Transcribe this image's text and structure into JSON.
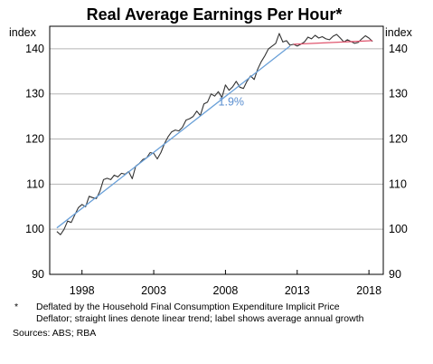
{
  "chart_data": {
    "type": "line",
    "title": "Real Average Earnings Per Hour*",
    "ylabel_left": "index",
    "ylabel_right": "index",
    "ylim": [
      90,
      145
    ],
    "yticks": [
      90,
      100,
      110,
      120,
      130,
      140
    ],
    "xlim": [
      1995.75,
      2019.0
    ],
    "xticks": [
      1998,
      2003,
      2008,
      2013,
      2018
    ],
    "grid": true,
    "series": [
      {
        "name": "",
        "style": "dark",
        "color": "#333333",
        "x": [
          1996.25,
          1996.5,
          1996.75,
          1997.0,
          1997.25,
          1997.5,
          1997.75,
          1998.0,
          1998.25,
          1998.5,
          1998.75,
          1999.0,
          1999.25,
          1999.5,
          1999.75,
          2000.0,
          2000.25,
          2000.5,
          2000.75,
          2001.0,
          2001.25,
          2001.5,
          2001.75,
          2002.0,
          2002.25,
          2002.5,
          2002.75,
          2003.0,
          2003.25,
          2003.5,
          2003.75,
          2004.0,
          2004.25,
          2004.5,
          2004.75,
          2005.0,
          2005.25,
          2005.5,
          2005.75,
          2006.0,
          2006.25,
          2006.5,
          2006.75,
          2007.0,
          2007.25,
          2007.5,
          2007.75,
          2008.0,
          2008.25,
          2008.5,
          2008.75,
          2009.0,
          2009.25,
          2009.5,
          2009.75,
          2010.0,
          2010.25,
          2010.5,
          2010.75,
          2011.0,
          2011.25,
          2011.5,
          2011.75,
          2012.0,
          2012.25,
          2012.5,
          2012.75,
          2013.0,
          2013.25,
          2013.5,
          2013.75,
          2014.0,
          2014.25,
          2014.5,
          2014.75,
          2015.0,
          2015.25,
          2015.5,
          2015.75,
          2016.0,
          2016.25,
          2016.5,
          2016.75,
          2017.0,
          2017.25,
          2017.5,
          2017.75,
          2018.0,
          2018.25
        ],
        "values": [
          99.5,
          98.8,
          100.0,
          101.8,
          101.5,
          103.2,
          104.8,
          105.5,
          105.0,
          107.3,
          107.0,
          106.8,
          108.4,
          111.0,
          111.3,
          111.0,
          112.0,
          111.6,
          112.4,
          112.2,
          112.8,
          111.2,
          114.0,
          114.6,
          115.5,
          115.8,
          117.0,
          116.8,
          115.6,
          117.0,
          119.0,
          120.5,
          121.6,
          122.0,
          121.8,
          122.6,
          124.2,
          124.5,
          125.0,
          126.2,
          125.2,
          127.8,
          128.2,
          130.0,
          129.5,
          130.5,
          129.2,
          132.0,
          130.8,
          131.6,
          132.8,
          131.5,
          131.2,
          132.8,
          134.0,
          133.2,
          135.5,
          137.2,
          138.5,
          140.0,
          140.6,
          141.2,
          143.4,
          141.5,
          141.8,
          140.8,
          141.0,
          140.6,
          141.0,
          141.5,
          142.6,
          142.2,
          143.0,
          142.4,
          142.7,
          142.2,
          142.0,
          142.8,
          143.2,
          142.4,
          141.5,
          142.0,
          141.6,
          141.2,
          141.4,
          142.2,
          142.9,
          142.4,
          141.6
        ]
      },
      {
        "name": "",
        "style": "trend",
        "color": "#6aa0d8",
        "x": [
          1996.25,
          2012.5
        ],
        "values": [
          100.3,
          140.6
        ]
      },
      {
        "name": "",
        "style": "trend",
        "color": "#e0566f",
        "x": [
          2012.75,
          2018.25
        ],
        "values": [
          141.0,
          141.8
        ]
      }
    ],
    "annotations": [
      {
        "text": "1.9%",
        "x": 2008.4,
        "y": 127.4,
        "color": "#5b8fd0"
      }
    ]
  },
  "footnote": {
    "marker": "*",
    "text": "Deflated by the Household Final Consumption Expenditure Implicit Price Deflator; straight lines denote linear trend; label shows average annual growth",
    "sources": "Sources: ABS; RBA"
  }
}
